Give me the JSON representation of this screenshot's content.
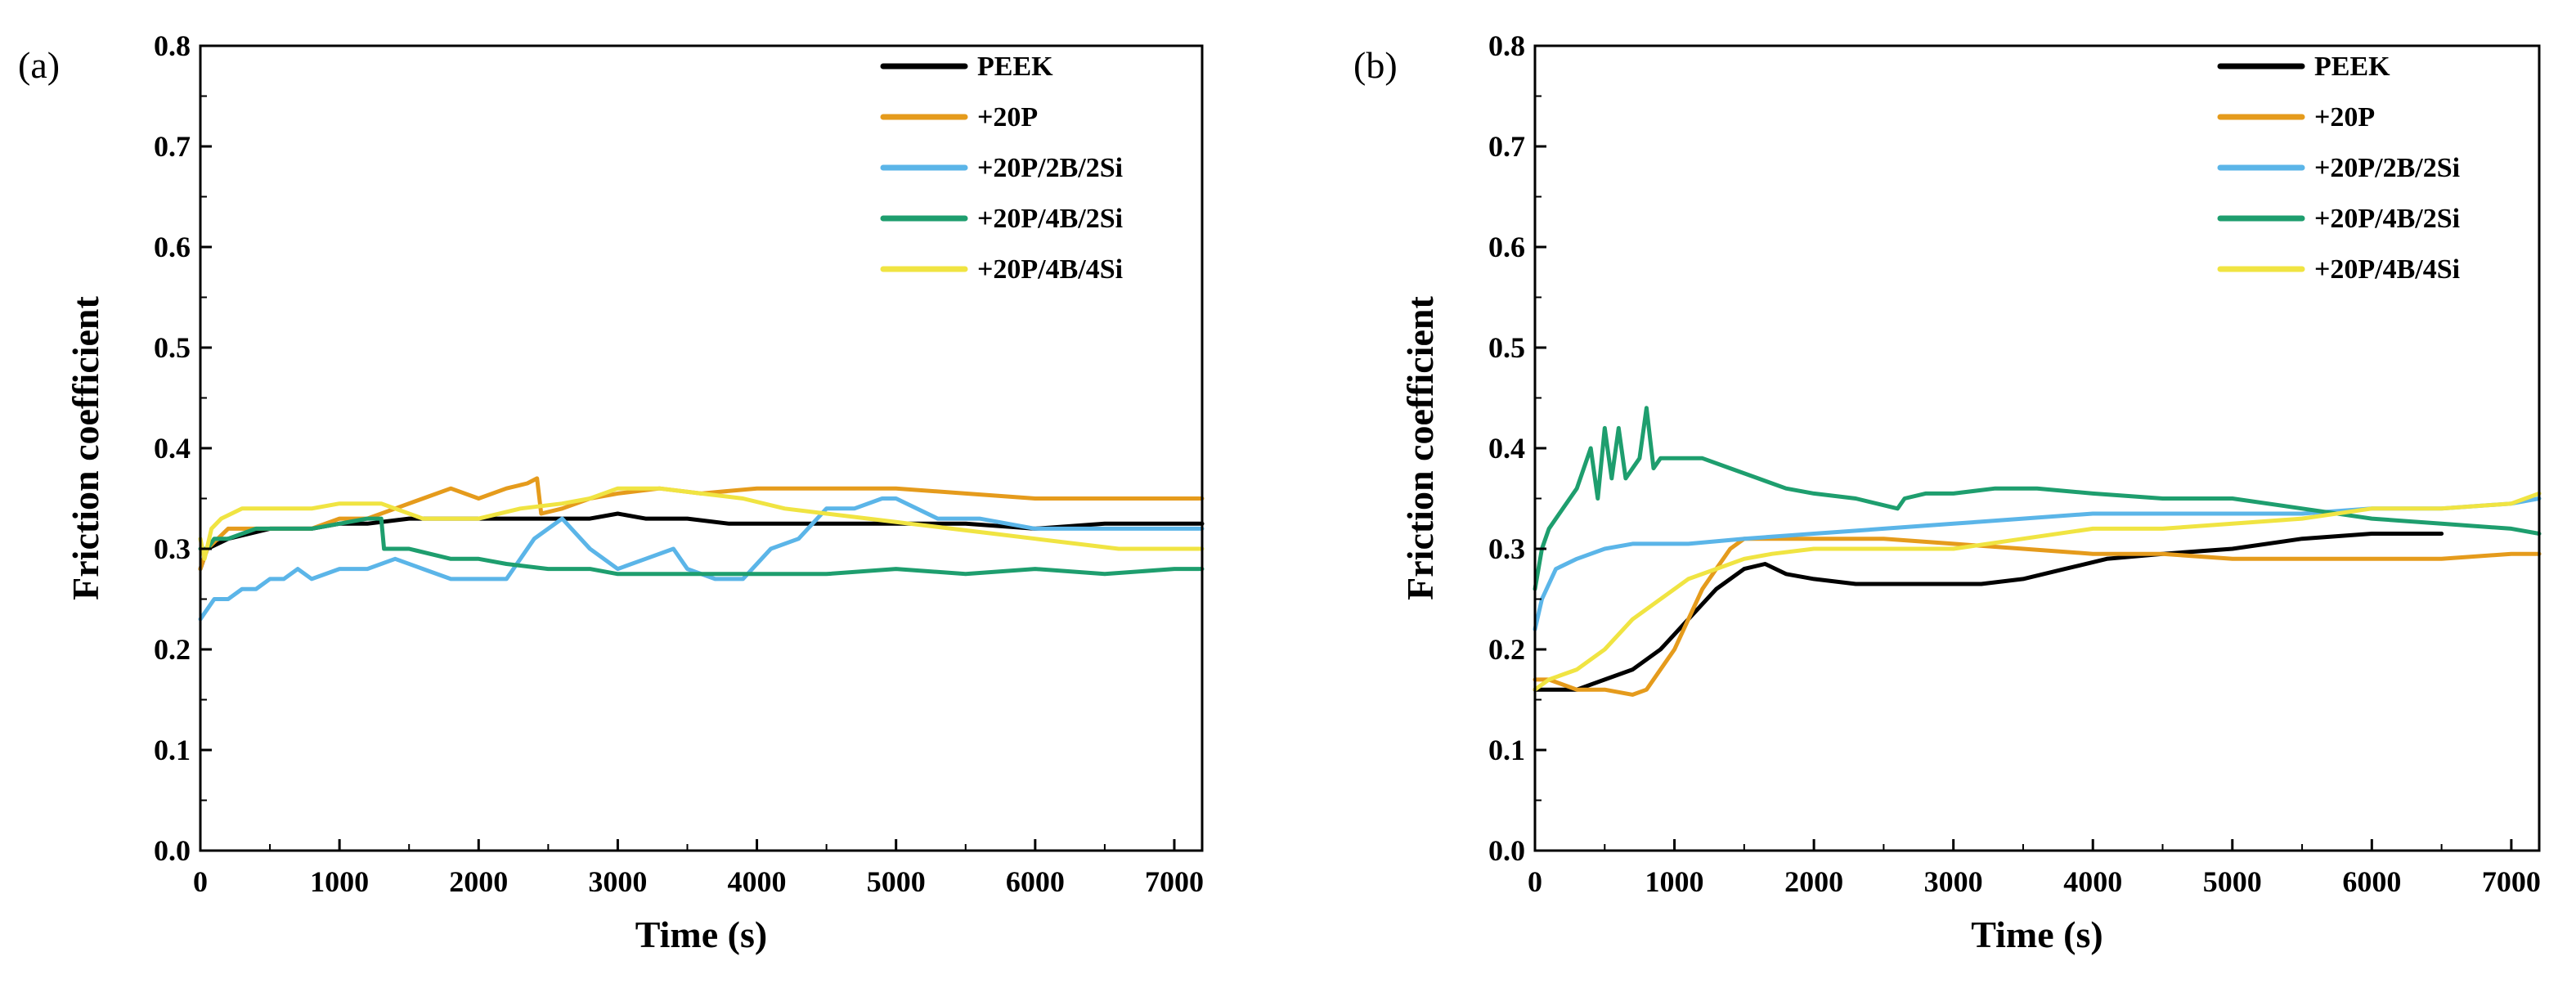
{
  "chart_data": [
    {
      "panel": "(a)",
      "type": "line",
      "xlabel": "Time (s)",
      "ylabel": "Friction coefficient",
      "xlim": [
        0,
        7200
      ],
      "ylim": [
        0.0,
        0.8
      ],
      "xticks": [
        0,
        1000,
        2000,
        3000,
        4000,
        5000,
        6000,
        7000
      ],
      "yticks": [
        "0.0",
        "0.1",
        "0.2",
        "0.3",
        "0.4",
        "0.5",
        "0.6",
        "0.7",
        "0.8"
      ],
      "legend_position": "top-right",
      "series": [
        {
          "name": "PEEK",
          "color": "#000000",
          "x": [
            0,
            50,
            200,
            500,
            800,
            1000,
            1200,
            1500,
            1800,
            2000,
            2200,
            2500,
            2800,
            3000,
            3200,
            3500,
            3800,
            4000,
            4500,
            5000,
            5500,
            6000,
            6500,
            7000,
            7200
          ],
          "y": [
            0.28,
            0.3,
            0.31,
            0.32,
            0.32,
            0.325,
            0.325,
            0.33,
            0.33,
            0.33,
            0.33,
            0.33,
            0.33,
            0.335,
            0.33,
            0.33,
            0.325,
            0.325,
            0.325,
            0.325,
            0.325,
            0.32,
            0.325,
            0.325,
            0.325
          ]
        },
        {
          "name": "+20P",
          "color": "#E59B1C",
          "x": [
            0,
            50,
            200,
            500,
            800,
            1000,
            1200,
            1400,
            1600,
            1800,
            2000,
            2200,
            2350,
            2420,
            2450,
            2600,
            2800,
            3000,
            3300,
            3600,
            4000,
            4500,
            5000,
            5500,
            6000,
            6500,
            7000,
            7200
          ],
          "y": [
            0.28,
            0.3,
            0.32,
            0.32,
            0.32,
            0.33,
            0.33,
            0.34,
            0.35,
            0.36,
            0.35,
            0.36,
            0.365,
            0.37,
            0.335,
            0.34,
            0.35,
            0.355,
            0.36,
            0.355,
            0.36,
            0.36,
            0.36,
            0.355,
            0.35,
            0.35,
            0.35,
            0.35
          ]
        },
        {
          "name": "+20P/2B/2Si",
          "color": "#5BB5E8",
          "x": [
            0,
            50,
            100,
            200,
            300,
            400,
            500,
            600,
            700,
            800,
            1000,
            1200,
            1400,
            1600,
            1800,
            2000,
            2200,
            2400,
            2600,
            2800,
            3000,
            3200,
            3400,
            3500,
            3700,
            3900,
            4100,
            4300,
            4500,
            4700,
            4900,
            5000,
            5300,
            5600,
            6000,
            6500,
            7000,
            7200
          ],
          "y": [
            0.23,
            0.24,
            0.25,
            0.25,
            0.26,
            0.26,
            0.27,
            0.27,
            0.28,
            0.27,
            0.28,
            0.28,
            0.29,
            0.28,
            0.27,
            0.27,
            0.27,
            0.31,
            0.33,
            0.3,
            0.28,
            0.29,
            0.3,
            0.28,
            0.27,
            0.27,
            0.3,
            0.31,
            0.34,
            0.34,
            0.35,
            0.35,
            0.33,
            0.33,
            0.32,
            0.32,
            0.32,
            0.32
          ]
        },
        {
          "name": "+20P/4B/2Si",
          "color": "#1E9E6E",
          "x": [
            0,
            50,
            100,
            200,
            400,
            600,
            800,
            1000,
            1200,
            1300,
            1320,
            1500,
            1800,
            2000,
            2200,
            2500,
            2800,
            3000,
            3300,
            3600,
            4000,
            4500,
            5000,
            5500,
            6000,
            6500,
            7000,
            7200
          ],
          "y": [
            0.3,
            0.3,
            0.31,
            0.31,
            0.32,
            0.32,
            0.32,
            0.325,
            0.33,
            0.33,
            0.3,
            0.3,
            0.29,
            0.29,
            0.285,
            0.28,
            0.28,
            0.275,
            0.275,
            0.275,
            0.275,
            0.275,
            0.28,
            0.275,
            0.28,
            0.275,
            0.28,
            0.28
          ]
        },
        {
          "name": "+20P/4B/4Si",
          "color": "#F0E442",
          "x": [
            0,
            30,
            80,
            150,
            300,
            500,
            800,
            1000,
            1300,
            1600,
            2000,
            2300,
            2600,
            2800,
            3000,
            3300,
            3600,
            3900,
            4200,
            4500,
            4800,
            5100,
            5400,
            5700,
            6000,
            6300,
            6600,
            7000,
            7200
          ],
          "y": [
            0.31,
            0.29,
            0.32,
            0.33,
            0.34,
            0.34,
            0.34,
            0.345,
            0.345,
            0.33,
            0.33,
            0.34,
            0.345,
            0.35,
            0.36,
            0.36,
            0.355,
            0.35,
            0.34,
            0.335,
            0.33,
            0.325,
            0.32,
            0.315,
            0.31,
            0.305,
            0.3,
            0.3,
            0.3
          ]
        }
      ]
    },
    {
      "panel": "(b)",
      "type": "line",
      "xlabel": "Time (s)",
      "ylabel": "Friction coefficient",
      "xlim": [
        0,
        7200
      ],
      "ylim": [
        0.0,
        0.8
      ],
      "xticks": [
        0,
        1000,
        2000,
        3000,
        4000,
        5000,
        6000,
        7000
      ],
      "yticks": [
        "0.0",
        "0.1",
        "0.2",
        "0.3",
        "0.4",
        "0.5",
        "0.6",
        "0.7",
        "0.8"
      ],
      "legend_position": "top-right",
      "series": [
        {
          "name": "PEEK",
          "color": "#000000",
          "x": [
            0,
            100,
            300,
            500,
            700,
            900,
            1100,
            1300,
            1500,
            1650,
            1800,
            2000,
            2300,
            2600,
            2900,
            3200,
            3500,
            3800,
            4100,
            4500,
            5000,
            5500,
            6000,
            6500
          ],
          "y": [
            0.16,
            0.16,
            0.16,
            0.17,
            0.18,
            0.2,
            0.23,
            0.26,
            0.28,
            0.285,
            0.275,
            0.27,
            0.265,
            0.265,
            0.265,
            0.265,
            0.27,
            0.28,
            0.29,
            0.295,
            0.3,
            0.31,
            0.315,
            0.315
          ]
        },
        {
          "name": "+20P",
          "color": "#E59B1C",
          "x": [
            0,
            100,
            300,
            500,
            700,
            800,
            900,
            1000,
            1100,
            1200,
            1300,
            1400,
            1500,
            1700,
            2000,
            2500,
            3000,
            3500,
            4000,
            4500,
            5000,
            5500,
            6000,
            6500,
            7000,
            7200
          ],
          "y": [
            0.17,
            0.17,
            0.16,
            0.16,
            0.155,
            0.16,
            0.18,
            0.2,
            0.23,
            0.26,
            0.28,
            0.3,
            0.31,
            0.31,
            0.31,
            0.31,
            0.305,
            0.3,
            0.295,
            0.295,
            0.29,
            0.29,
            0.29,
            0.29,
            0.295,
            0.295
          ]
        },
        {
          "name": "+20P/2B/2Si",
          "color": "#5BB5E8",
          "x": [
            0,
            50,
            150,
            300,
            500,
            700,
            900,
            1100,
            1500,
            2000,
            2500,
            3000,
            3500,
            4000,
            4500,
            5000,
            5500,
            6000,
            6500,
            7000,
            7200
          ],
          "y": [
            0.22,
            0.25,
            0.28,
            0.29,
            0.3,
            0.305,
            0.305,
            0.305,
            0.31,
            0.315,
            0.32,
            0.325,
            0.33,
            0.335,
            0.335,
            0.335,
            0.335,
            0.34,
            0.34,
            0.345,
            0.35
          ]
        },
        {
          "name": "+20P/4B/2Si",
          "color": "#1E9E6E",
          "x": [
            0,
            50,
            100,
            200,
            300,
            400,
            450,
            500,
            550,
            600,
            650,
            700,
            750,
            800,
            850,
            900,
            1000,
            1200,
            1400,
            1600,
            1800,
            2000,
            2300,
            2600,
            2650,
            2800,
            3000,
            3300,
            3600,
            4000,
            4500,
            5000,
            5500,
            6000,
            6500,
            7000,
            7200
          ],
          "y": [
            0.26,
            0.3,
            0.32,
            0.34,
            0.36,
            0.4,
            0.35,
            0.42,
            0.37,
            0.42,
            0.37,
            0.38,
            0.39,
            0.44,
            0.38,
            0.39,
            0.39,
            0.39,
            0.38,
            0.37,
            0.36,
            0.355,
            0.35,
            0.34,
            0.35,
            0.355,
            0.355,
            0.36,
            0.36,
            0.355,
            0.35,
            0.35,
            0.34,
            0.33,
            0.325,
            0.32,
            0.315
          ]
        },
        {
          "name": "+20P/4B/4Si",
          "color": "#F0E442",
          "x": [
            0,
            100,
            300,
            500,
            700,
            900,
            1100,
            1300,
            1500,
            1700,
            2000,
            2500,
            3000,
            3500,
            4000,
            4500,
            5000,
            5500,
            6000,
            6500,
            7000,
            7200
          ],
          "y": [
            0.16,
            0.17,
            0.18,
            0.2,
            0.23,
            0.25,
            0.27,
            0.28,
            0.29,
            0.295,
            0.3,
            0.3,
            0.3,
            0.31,
            0.32,
            0.32,
            0.325,
            0.33,
            0.34,
            0.34,
            0.345,
            0.355
          ]
        }
      ]
    }
  ]
}
